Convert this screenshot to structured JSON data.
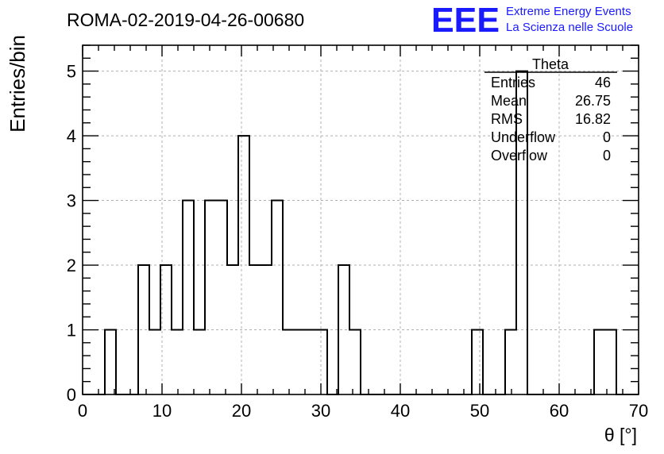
{
  "header": {
    "run_title": "ROMA-02-2019-04-26-00680"
  },
  "logo": {
    "mark": "EEE",
    "line1": "Extreme Energy Events",
    "line2": "La Scienza nelle Scuole",
    "color": "#1a1aff"
  },
  "stats_box": {
    "title": "Theta",
    "rows": [
      {
        "label": "Entries",
        "value": "46"
      },
      {
        "label": "Mean",
        "value": "26.75"
      },
      {
        "label": "RMS",
        "value": "16.82"
      },
      {
        "label": "Underflow",
        "value": "0"
      },
      {
        "label": "Overflow",
        "value": "0"
      }
    ]
  },
  "chart_data": {
    "type": "histogram",
    "xlabel": "θ [°]",
    "ylabel": "Entries/bin",
    "xlim": [
      0,
      70
    ],
    "ylim": [
      0,
      5.4
    ],
    "bin_width": 1.4,
    "x_ticks": [
      0,
      10,
      20,
      30,
      40,
      50,
      60,
      70
    ],
    "y_ticks": [
      0,
      1,
      2,
      3,
      4,
      5
    ],
    "grid": true,
    "counts": [
      0,
      0,
      1,
      0,
      0,
      2,
      1,
      2,
      1,
      3,
      1,
      3,
      3,
      2,
      4,
      2,
      2,
      3,
      1,
      1,
      1,
      1,
      0,
      2,
      1,
      0,
      0,
      0,
      0,
      0,
      0,
      0,
      0,
      0,
      0,
      1,
      0,
      0,
      1,
      5,
      0,
      0,
      0,
      0,
      0,
      0,
      1,
      1,
      0,
      0
    ],
    "line_color": "#000000",
    "grid_color": "#b0b0b0"
  }
}
